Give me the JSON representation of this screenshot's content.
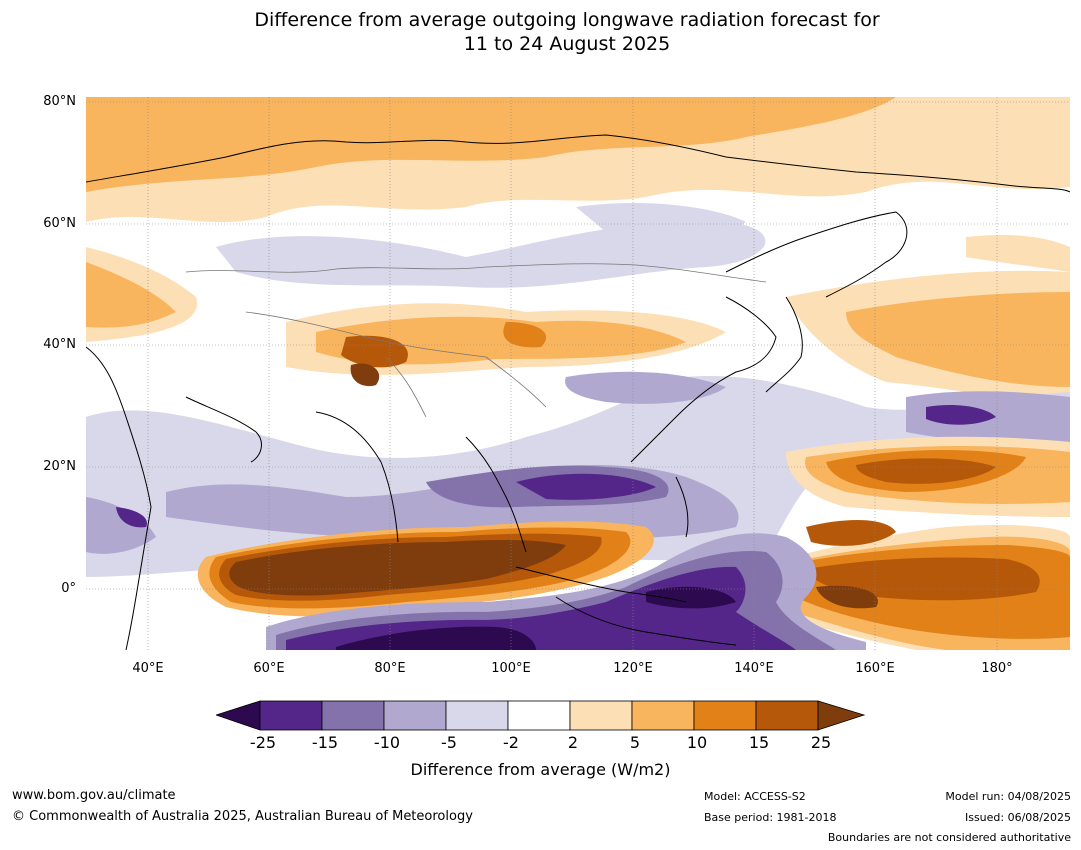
{
  "title_line1": "Difference from average outgoing longwave radiation forecast for",
  "title_line2": "11 to 24 August 2025",
  "lat_labels": [
    "80°N",
    "60°N",
    "40°N",
    "20°N",
    "0°"
  ],
  "lon_labels": [
    "40°E",
    "60°E",
    "80°E",
    "100°E",
    "120°E",
    "140°E",
    "160°E",
    "180°"
  ],
  "colorbar": {
    "title": "Difference from average (W/m2)",
    "ticks": [
      "-25",
      "-15",
      "-10",
      "-5",
      "-2",
      "2",
      "5",
      "10",
      "15",
      "25"
    ],
    "colors": [
      "#2d0a50",
      "#55268a",
      "#8373aa",
      "#b0a8cf",
      "#d9d8ea",
      "#ffffff",
      "#fddfb5",
      "#f9b45e",
      "#e18117",
      "#b5580a",
      "#7f3c0c"
    ]
  },
  "footer": {
    "website": "www.bom.gov.au/climate",
    "copyright": "© Commonwealth of Australia 2025, Australian Bureau of Meteorology",
    "model": "Model: ACCESS-S2",
    "base_period": "Base period: 1981-2018",
    "model_run": "Model run: 04/08/2025",
    "issued": "Issued: 06/08/2025",
    "disclaimer": "Boundaries are not considered authoritative"
  }
}
